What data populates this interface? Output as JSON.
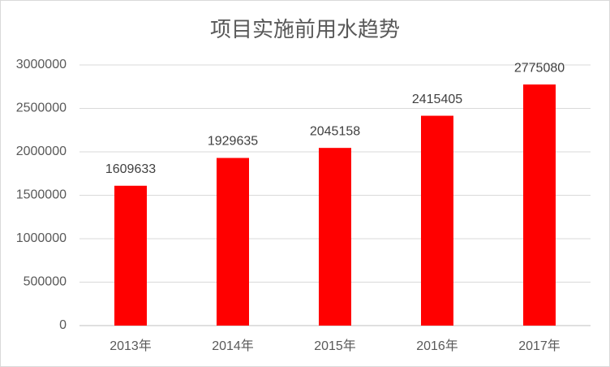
{
  "chart_data": {
    "type": "bar",
    "title": "项目实施前用水趋势",
    "categories": [
      "2013年",
      "2014年",
      "2015年",
      "2016年",
      "2017年"
    ],
    "values": [
      1609633,
      1929635,
      2045158,
      2415405,
      2775080
    ],
    "color": "#ff0000",
    "ylim": [
      0,
      3000000
    ],
    "yticks": [
      0,
      500000,
      1000000,
      1500000,
      2000000,
      2500000,
      3000000
    ],
    "grid": true
  }
}
